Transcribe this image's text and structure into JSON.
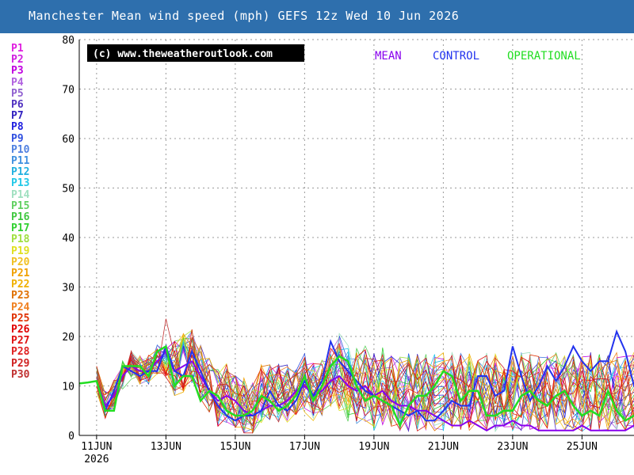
{
  "header": {
    "title": "Manchester Mean wind speed (mph) GEFS 12z Wed 10 Jun 2026"
  },
  "watermark": "(c) www.theweatheroutlook.com",
  "legend": {
    "mean": "MEAN",
    "control": "CONTROL",
    "operational": "OPERATIONAL"
  },
  "members": [
    {
      "label": "P1",
      "color": "#e020e0"
    },
    {
      "label": "P2",
      "color": "#d020e0"
    },
    {
      "label": "P3",
      "color": "#c000e0"
    },
    {
      "label": "P4",
      "color": "#b060e0"
    },
    {
      "label": "P5",
      "color": "#9060d0"
    },
    {
      "label": "P6",
      "color": "#5030c0"
    },
    {
      "label": "P7",
      "color": "#3020c0"
    },
    {
      "label": "P8",
      "color": "#2020e0"
    },
    {
      "label": "P9",
      "color": "#3050e0"
    },
    {
      "label": "P10",
      "color": "#5080e0"
    },
    {
      "label": "P11",
      "color": "#4090e0"
    },
    {
      "label": "P12",
      "color": "#20b0e0"
    },
    {
      "label": "P13",
      "color": "#20c8e8"
    },
    {
      "label": "P14",
      "color": "#a0e0c0"
    },
    {
      "label": "P15",
      "color": "#60d060"
    },
    {
      "label": "P16",
      "color": "#40c840"
    },
    {
      "label": "P17",
      "color": "#30d030"
    },
    {
      "label": "P18",
      "color": "#a0e040"
    },
    {
      "label": "P19",
      "color": "#e0e020"
    },
    {
      "label": "P20",
      "color": "#f0c020"
    },
    {
      "label": "P21",
      "color": "#f0a000"
    },
    {
      "label": "P22",
      "color": "#f0b000"
    },
    {
      "label": "P23",
      "color": "#e07000"
    },
    {
      "label": "P24",
      "color": "#f08020"
    },
    {
      "label": "P25",
      "color": "#e03000"
    },
    {
      "label": "P26",
      "color": "#e00000"
    },
    {
      "label": "P27",
      "color": "#e01010"
    },
    {
      "label": "P28",
      "color": "#e02020"
    },
    {
      "label": "P29",
      "color": "#d02020"
    },
    {
      "label": "P30",
      "color": "#c03030"
    }
  ],
  "chart_data": {
    "type": "line",
    "title": "Manchester Mean wind speed (mph) GEFS 12z Wed 10 Jun 2026",
    "xlabel": "",
    "ylabel": "",
    "ylim": [
      0,
      80
    ],
    "yticks": [
      0,
      10,
      20,
      30,
      40,
      50,
      60,
      70,
      80
    ],
    "x_start": "2026-06-10T12:00",
    "x_end": "2026-06-26T12:00",
    "x_step_hours": 6,
    "xticks": [
      {
        "date": "2026-06-11",
        "label": "11JUN",
        "sublabel": "2026"
      },
      {
        "date": "2026-06-13",
        "label": "13JUN"
      },
      {
        "date": "2026-06-15",
        "label": "15JUN"
      },
      {
        "date": "2026-06-17",
        "label": "17JUN"
      },
      {
        "date": "2026-06-19",
        "label": "19JUN"
      },
      {
        "date": "2026-06-21",
        "label": "21JUN"
      },
      {
        "date": "2026-06-23",
        "label": "23JUN"
      },
      {
        "date": "2026-06-25",
        "label": "25JUN"
      }
    ],
    "grid": true,
    "legend_position": "top",
    "series": [
      {
        "name": "MEAN",
        "color": "#8800ee",
        "width": 2,
        "values": [
          null,
          null,
          11,
          6,
          8,
          12,
          14,
          13,
          13,
          15,
          17,
          13,
          14,
          15,
          12,
          9,
          7,
          8,
          7,
          5,
          4,
          5,
          6,
          6,
          7,
          9,
          10,
          8,
          9,
          11,
          12,
          10,
          9,
          10,
          8,
          9,
          7,
          6,
          6,
          5,
          5,
          4,
          3,
          2,
          2,
          3,
          2,
          1,
          2,
          2,
          3,
          2,
          2,
          1,
          1,
          1,
          1,
          1,
          2,
          1,
          1,
          1,
          1,
          1,
          2,
          4,
          6,
          8
        ]
      },
      {
        "name": "CONTROL",
        "color": "#2233ee",
        "width": 2,
        "values": [
          null,
          null,
          11,
          5,
          9,
          14,
          13,
          12,
          13,
          13,
          18,
          13,
          12,
          17,
          13,
          9,
          6,
          4,
          3,
          4,
          4,
          5,
          9,
          6,
          5,
          7,
          11,
          8,
          11,
          19,
          15,
          13,
          11,
          9,
          8,
          7,
          6,
          5,
          4,
          5,
          3,
          3,
          5,
          7,
          6,
          6,
          12,
          12,
          8,
          9,
          18,
          12,
          7,
          10,
          14,
          11,
          14,
          18,
          15,
          13,
          15,
          15,
          21,
          17,
          10,
          11,
          15,
          8
        ]
      },
      {
        "name": "OPERATIONAL",
        "color": "#22dd22",
        "width": 2.5,
        "values": [
          10.5,
          10.7,
          11,
          5,
          5,
          14,
          14,
          14,
          12,
          17,
          18,
          10,
          12,
          12,
          7,
          9,
          8,
          5,
          4,
          4,
          5,
          8,
          7,
          5,
          6,
          8,
          12,
          7,
          10,
          14,
          16,
          15,
          10,
          7,
          8,
          7,
          6,
          2,
          6,
          8,
          8,
          10,
          13,
          12,
          7,
          9,
          9,
          4,
          4,
          5,
          5,
          8,
          9,
          7,
          6,
          8,
          9,
          6,
          4,
          5,
          4,
          9,
          5,
          3,
          4,
          3,
          5,
          6
        ]
      }
    ]
  }
}
